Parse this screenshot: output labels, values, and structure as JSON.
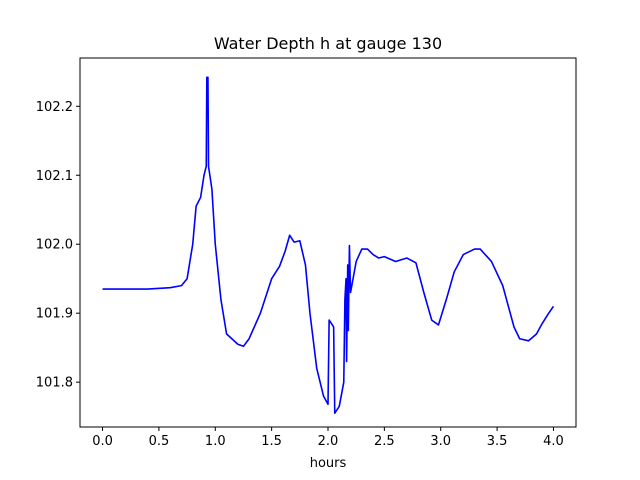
{
  "chart_data": {
    "type": "line",
    "title": "Water Depth h at gauge 130",
    "xlabel": "hours",
    "ylabel": "",
    "xlim": [
      -0.2,
      4.2
    ],
    "ylim": [
      101.735,
      102.27
    ],
    "xticks": [
      0.0,
      0.5,
      1.0,
      1.5,
      2.0,
      2.5,
      3.0,
      3.5,
      4.0
    ],
    "xtick_labels": [
      "0.0",
      "0.5",
      "1.0",
      "1.5",
      "2.0",
      "2.5",
      "3.0",
      "3.5",
      "4.0"
    ],
    "yticks": [
      101.8,
      101.9,
      102.0,
      102.1,
      102.2
    ],
    "ytick_labels": [
      "101.8",
      "101.9",
      "102.0",
      "102.1",
      "102.2"
    ],
    "grid": false,
    "series": [
      {
        "color": "#0000ff",
        "points": [
          [
            0.0,
            101.935
          ],
          [
            0.2,
            101.935
          ],
          [
            0.4,
            101.935
          ],
          [
            0.6,
            101.937
          ],
          [
            0.7,
            101.94
          ],
          [
            0.75,
            101.95
          ],
          [
            0.8,
            102.0
          ],
          [
            0.83,
            102.055
          ],
          [
            0.87,
            102.068
          ],
          [
            0.9,
            102.1
          ],
          [
            0.92,
            102.113
          ],
          [
            0.925,
            102.242
          ],
          [
            0.935,
            102.242
          ],
          [
            0.94,
            102.113
          ],
          [
            0.97,
            102.08
          ],
          [
            1.0,
            102.0
          ],
          [
            1.05,
            101.92
          ],
          [
            1.1,
            101.87
          ],
          [
            1.2,
            101.855
          ],
          [
            1.25,
            101.852
          ],
          [
            1.3,
            101.863
          ],
          [
            1.4,
            101.9
          ],
          [
            1.5,
            101.95
          ],
          [
            1.57,
            101.968
          ],
          [
            1.62,
            101.99
          ],
          [
            1.66,
            102.013
          ],
          [
            1.7,
            102.003
          ],
          [
            1.75,
            102.005
          ],
          [
            1.8,
            101.97
          ],
          [
            1.84,
            101.9
          ],
          [
            1.9,
            101.82
          ],
          [
            1.96,
            101.78
          ],
          [
            2.0,
            101.768
          ],
          [
            2.01,
            101.89
          ],
          [
            2.05,
            101.88
          ],
          [
            2.06,
            101.755
          ],
          [
            2.1,
            101.765
          ],
          [
            2.14,
            101.8
          ],
          [
            2.15,
            101.92
          ],
          [
            2.16,
            101.95
          ],
          [
            2.165,
            101.83
          ],
          [
            2.175,
            101.97
          ],
          [
            2.18,
            101.875
          ],
          [
            2.19,
            101.998
          ],
          [
            2.2,
            101.93
          ],
          [
            2.25,
            101.975
          ],
          [
            2.3,
            101.993
          ],
          [
            2.35,
            101.993
          ],
          [
            2.4,
            101.985
          ],
          [
            2.45,
            101.98
          ],
          [
            2.5,
            101.982
          ],
          [
            2.6,
            101.975
          ],
          [
            2.7,
            101.98
          ],
          [
            2.78,
            101.973
          ],
          [
            2.85,
            101.93
          ],
          [
            2.92,
            101.89
          ],
          [
            2.98,
            101.883
          ],
          [
            3.05,
            101.92
          ],
          [
            3.12,
            101.96
          ],
          [
            3.2,
            101.985
          ],
          [
            3.3,
            101.993
          ],
          [
            3.35,
            101.993
          ],
          [
            3.45,
            101.975
          ],
          [
            3.55,
            101.94
          ],
          [
            3.6,
            101.91
          ],
          [
            3.65,
            101.88
          ],
          [
            3.7,
            101.863
          ],
          [
            3.78,
            101.86
          ],
          [
            3.85,
            101.87
          ],
          [
            3.9,
            101.885
          ],
          [
            3.95,
            101.898
          ],
          [
            4.0,
            101.91
          ]
        ]
      }
    ]
  }
}
